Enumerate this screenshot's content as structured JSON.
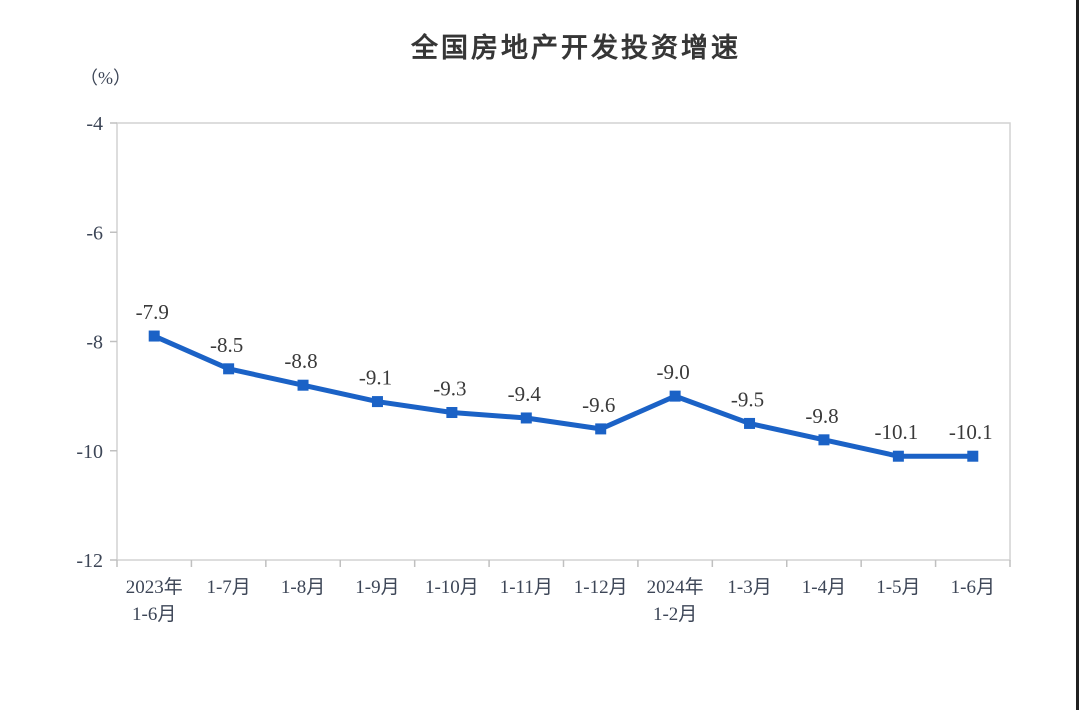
{
  "page": {
    "title": "全国房地产开发投资增速",
    "unit_label": "（%）"
  },
  "chart_data": {
    "type": "line",
    "title": "全国房地产开发投资增速",
    "unit": "（%）",
    "categories": [
      "2023年\n1-6月",
      "1-7月",
      "1-8月",
      "1-9月",
      "1-10月",
      "1-11月",
      "1-12月",
      "2024年\n1-2月",
      "1-3月",
      "1-4月",
      "1-5月",
      "1-6月"
    ],
    "values": [
      -7.9,
      -8.5,
      -8.8,
      -9.1,
      -9.3,
      -9.4,
      -9.6,
      -9.0,
      -9.5,
      -9.8,
      -10.1,
      -10.1
    ],
    "data_labels": [
      "-7.9",
      "-8.5",
      "-8.8",
      "-9.1",
      "-9.3",
      "-9.4",
      "-9.6",
      "-9.0",
      "-9.5",
      "-9.8",
      "-10.1",
      "-10.1"
    ],
    "ylim": [
      -12,
      -4
    ],
    "yticks": [
      -4,
      -6,
      -8,
      -10,
      -12
    ],
    "ytick_labels": [
      "-4",
      "-6",
      "-8",
      "-10",
      "-12"
    ],
    "grid": false,
    "legend": "none",
    "marker": "square",
    "colors": {
      "line": "#1b62c6",
      "plot_border": "#d2d2d2",
      "tick": "#c0c0c0",
      "axis_text": "#3d4657",
      "data_label_text": "#3a3a3a",
      "title_text": "#363636",
      "page_edge": "#202020"
    }
  }
}
